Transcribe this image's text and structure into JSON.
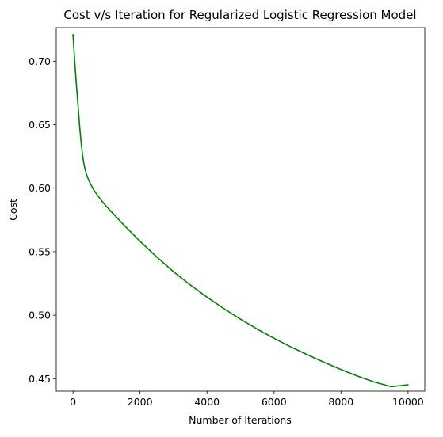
{
  "chart_data": {
    "type": "line",
    "title": "Cost v/s Iteration for Regularized Logistic Regression Model",
    "xlabel": "Number of Iterations",
    "ylabel": "Cost",
    "xlim": [
      -500,
      10500
    ],
    "ylim": [
      0.4402,
      0.7264
    ],
    "xticks": [
      0,
      2000,
      4000,
      6000,
      8000,
      10000
    ],
    "xtick_labels": [
      "0",
      "2000",
      "4000",
      "6000",
      "8000",
      "10000"
    ],
    "yticks": [
      0.45,
      0.5,
      0.55,
      0.6,
      0.65,
      0.7
    ],
    "ytick_labels": [
      "0.45",
      "0.50",
      "0.55",
      "0.60",
      "0.65",
      "0.70"
    ],
    "grid": false,
    "legend": "none",
    "series": [
      {
        "color": "#008000",
        "x": [
          0,
          50,
          100,
          150,
          200,
          250,
          300,
          350,
          400,
          450,
          500,
          600,
          700,
          800,
          900,
          1000,
          1250,
          1500,
          1750,
          2000,
          2500,
          3000,
          3500,
          4000,
          4500,
          5000,
          5500,
          6000,
          6500,
          7000,
          7500,
          8000,
          8500,
          9000,
          9500,
          10000
        ],
        "y": [
          0.721,
          0.7,
          0.682,
          0.665,
          0.648,
          0.634,
          0.623,
          0.616,
          0.611,
          0.6075,
          0.6045,
          0.5995,
          0.5955,
          0.592,
          0.5885,
          0.5855,
          0.5785,
          0.5715,
          0.5648,
          0.5582,
          0.5458,
          0.5342,
          0.5238,
          0.5142,
          0.5052,
          0.4968,
          0.489,
          0.4818,
          0.475,
          0.4688,
          0.4628,
          0.4572,
          0.452,
          0.4473,
          0.4437,
          0.4452
        ]
      }
    ]
  }
}
